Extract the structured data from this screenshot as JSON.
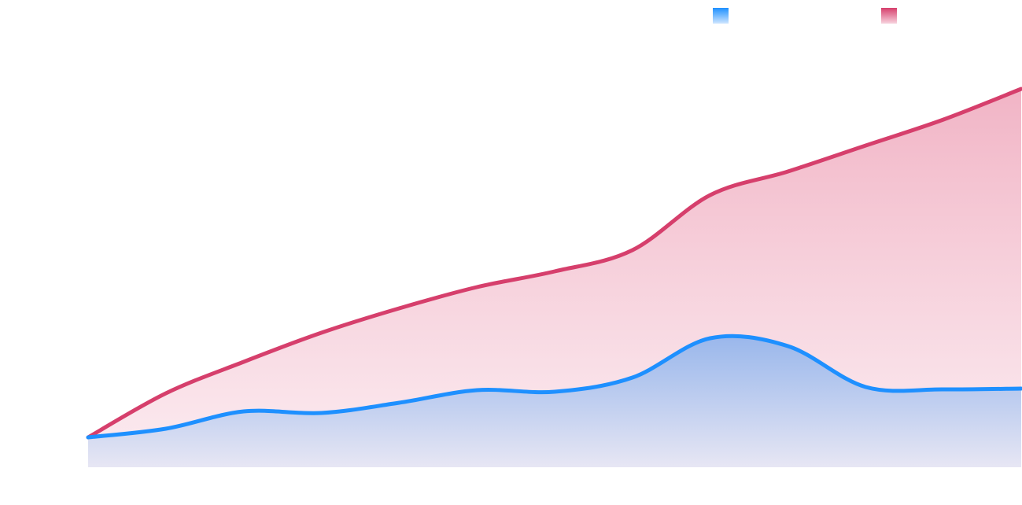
{
  "chart_data": {
    "type": "area",
    "categories": [
      null,
      null,
      null,
      null,
      null,
      null,
      null,
      null,
      null,
      null,
      null,
      null,
      null
    ],
    "series": [
      {
        "color": "#d63f6c",
        "values": [
          7.6,
          18.8,
          26.8,
          34.2,
          40.4,
          45.8,
          49.8,
          55.2,
          69.2,
          75.2,
          81.8,
          88.4,
          96.2
        ]
      },
      {
        "color": "#1e90ff",
        "values": [
          7.6,
          9.8,
          14.2,
          13.8,
          16.4,
          19.6,
          19.2,
          22.8,
          32.8,
          30.8,
          20.4,
          19.8,
          20
        ]
      }
    ],
    "ylim": [
      0,
      100
    ],
    "legend": "top-right"
  }
}
